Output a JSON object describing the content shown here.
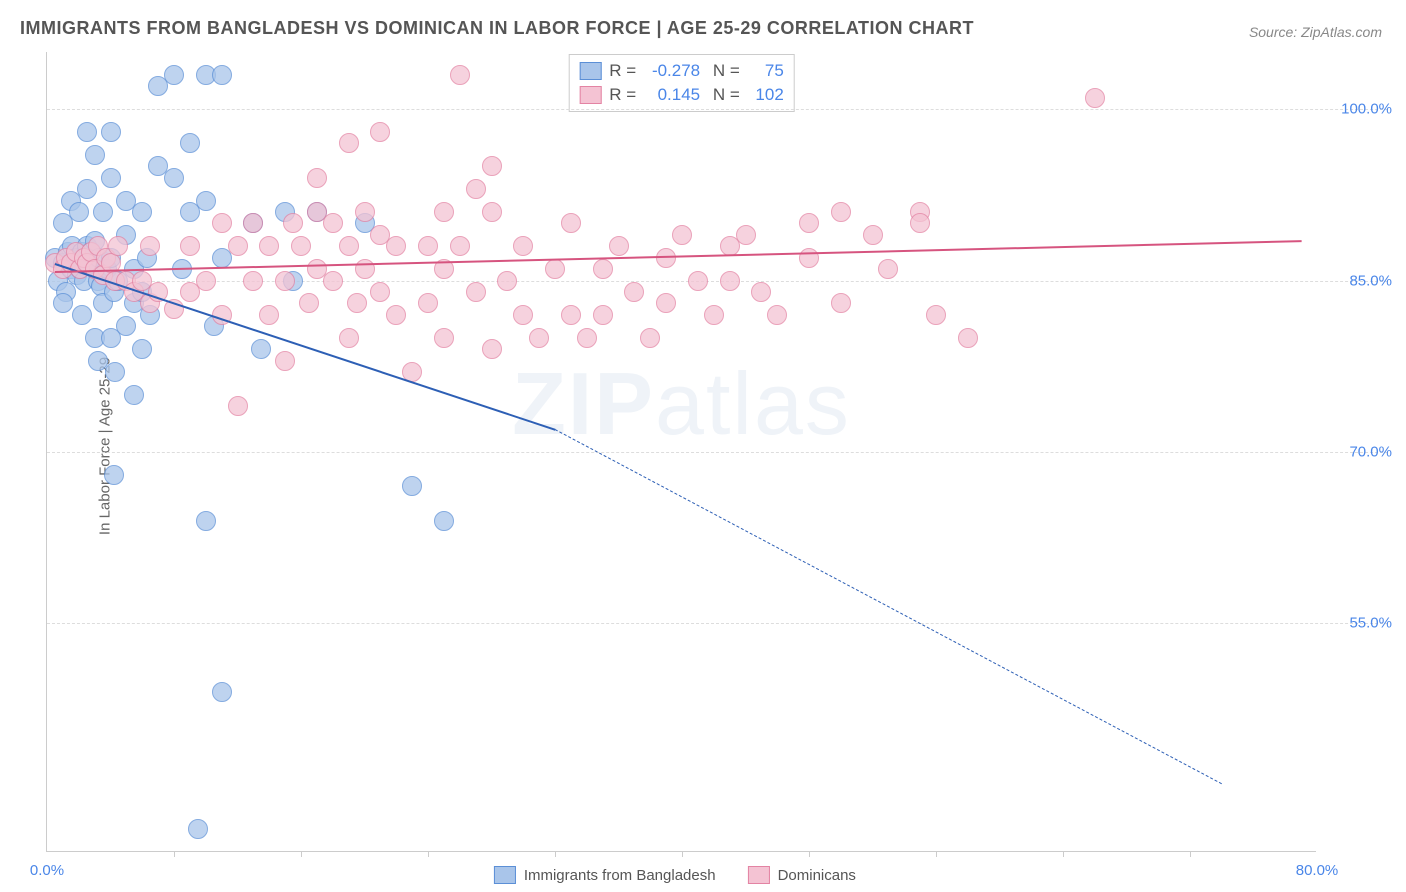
{
  "title": "IMMIGRANTS FROM BANGLADESH VS DOMINICAN IN LABOR FORCE | AGE 25-29 CORRELATION CHART",
  "source": "Source: ZipAtlas.com",
  "watermark_bold": "ZIP",
  "watermark_light": "atlas",
  "chart": {
    "type": "scatter",
    "background_color": "#ffffff",
    "grid_color": "#dddddd",
    "axis_color": "#cccccc",
    "y_axis_title": "In Labor Force | Age 25-29",
    "y_axis_title_color": "#666666",
    "xlim": [
      0,
      80
    ],
    "ylim": [
      35,
      105
    ],
    "y_ticks": [
      {
        "value": 55,
        "label": "55.0%"
      },
      {
        "value": 70,
        "label": "70.0%"
      },
      {
        "value": 85,
        "label": "85.0%"
      },
      {
        "value": 100,
        "label": "100.0%"
      }
    ],
    "x_ticks": [
      {
        "value": 0,
        "label": "0.0%"
      },
      {
        "value": 80,
        "label": "80.0%"
      }
    ],
    "x_tick_marks": [
      8,
      16,
      24,
      32,
      40,
      48,
      56,
      64,
      72
    ],
    "tick_label_color": "#4a86e8",
    "point_radius": 10,
    "point_fill_opacity": 0.28,
    "point_stroke_width": 1.8,
    "series": [
      {
        "name": "Immigrants from Bangladesh",
        "color_stroke": "#5b8fd6",
        "color_fill": "#a9c5ea",
        "R": "-0.278",
        "N": "75",
        "trend": {
          "x1": 0.5,
          "y1": 86.5,
          "x2_solid": 32,
          "y2_solid": 72,
          "x2": 74,
          "y2": 41,
          "stroke": "#2d5fb5",
          "width": 2.8,
          "dash_after": 32
        },
        "points": [
          {
            "x": 0.5,
            "y": 87
          },
          {
            "x": 0.7,
            "y": 85
          },
          {
            "x": 1,
            "y": 86.5
          },
          {
            "x": 1.2,
            "y": 84
          },
          {
            "x": 1.3,
            "y": 87.5
          },
          {
            "x": 1.5,
            "y": 86
          },
          {
            "x": 1.6,
            "y": 88
          },
          {
            "x": 1.8,
            "y": 87
          },
          {
            "x": 1.9,
            "y": 85.5
          },
          {
            "x": 2.1,
            "y": 86
          },
          {
            "x": 2.2,
            "y": 87.5
          },
          {
            "x": 2.3,
            "y": 85
          },
          {
            "x": 2.5,
            "y": 88
          },
          {
            "x": 2.6,
            "y": 86.5
          },
          {
            "x": 2.8,
            "y": 87.5
          },
          {
            "x": 3,
            "y": 88.5
          },
          {
            "x": 3,
            "y": 86
          },
          {
            "x": 3.2,
            "y": 85
          },
          {
            "x": 3.3,
            "y": 87
          },
          {
            "x": 3.4,
            "y": 84.5
          },
          {
            "x": 3.5,
            "y": 83
          },
          {
            "x": 3.8,
            "y": 86
          },
          {
            "x": 4,
            "y": 87
          },
          {
            "x": 4.2,
            "y": 84
          },
          {
            "x": 4.5,
            "y": 85
          },
          {
            "x": 1,
            "y": 90
          },
          {
            "x": 1.5,
            "y": 92
          },
          {
            "x": 2,
            "y": 91
          },
          {
            "x": 2.5,
            "y": 93
          },
          {
            "x": 3,
            "y": 96
          },
          {
            "x": 3.5,
            "y": 91
          },
          {
            "x": 4,
            "y": 94
          },
          {
            "x": 4,
            "y": 98
          },
          {
            "x": 5,
            "y": 92
          },
          {
            "x": 5,
            "y": 89
          },
          {
            "x": 5.5,
            "y": 86
          },
          {
            "x": 5.5,
            "y": 83
          },
          {
            "x": 6,
            "y": 84
          },
          {
            "x": 6,
            "y": 79
          },
          {
            "x": 6.5,
            "y": 82
          },
          {
            "x": 6.3,
            "y": 87
          },
          {
            "x": 6,
            "y": 91
          },
          {
            "x": 7,
            "y": 95
          },
          {
            "x": 7,
            "y": 102
          },
          {
            "x": 8,
            "y": 94
          },
          {
            "x": 8.5,
            "y": 86
          },
          {
            "x": 8,
            "y": 103
          },
          {
            "x": 9,
            "y": 97
          },
          {
            "x": 9,
            "y": 91
          },
          {
            "x": 10,
            "y": 103
          },
          {
            "x": 10,
            "y": 92
          },
          {
            "x": 10.5,
            "y": 81
          },
          {
            "x": 11,
            "y": 103
          },
          {
            "x": 11,
            "y": 87
          },
          {
            "x": 13,
            "y": 90
          },
          {
            "x": 13.5,
            "y": 79
          },
          {
            "x": 15,
            "y": 91
          },
          {
            "x": 15.5,
            "y": 85
          },
          {
            "x": 17,
            "y": 91
          },
          {
            "x": 20,
            "y": 90
          },
          {
            "x": 1,
            "y": 83
          },
          {
            "x": 2.2,
            "y": 82
          },
          {
            "x": 3,
            "y": 80
          },
          {
            "x": 3.2,
            "y": 78
          },
          {
            "x": 4,
            "y": 80
          },
          {
            "x": 4.3,
            "y": 77
          },
          {
            "x": 4.2,
            "y": 68
          },
          {
            "x": 5.5,
            "y": 75
          },
          {
            "x": 2.5,
            "y": 98
          },
          {
            "x": 5,
            "y": 81
          },
          {
            "x": 11,
            "y": 49
          },
          {
            "x": 9.5,
            "y": 37
          },
          {
            "x": 10,
            "y": 64
          },
          {
            "x": 23,
            "y": 67
          },
          {
            "x": 25,
            "y": 64
          }
        ]
      },
      {
        "name": "Dominicans",
        "color_stroke": "#e383a3",
        "color_fill": "#f4c3d3",
        "R": "0.145",
        "N": "102",
        "trend": {
          "x1": 0.5,
          "y1": 85.8,
          "x2": 79,
          "y2": 88.5,
          "stroke": "#d6547f",
          "width": 2.8
        },
        "points": [
          {
            "x": 0.5,
            "y": 86.5
          },
          {
            "x": 1,
            "y": 86
          },
          {
            "x": 1.2,
            "y": 87
          },
          {
            "x": 1.5,
            "y": 86.5
          },
          {
            "x": 1.8,
            "y": 87.5
          },
          {
            "x": 2.1,
            "y": 86
          },
          {
            "x": 2.3,
            "y": 87
          },
          {
            "x": 2.5,
            "y": 86.5
          },
          {
            "x": 2.8,
            "y": 87.5
          },
          {
            "x": 3,
            "y": 86
          },
          {
            "x": 3.2,
            "y": 88
          },
          {
            "x": 3.5,
            "y": 85.5
          },
          {
            "x": 3.7,
            "y": 87
          },
          {
            "x": 4,
            "y": 86.5
          },
          {
            "x": 4.3,
            "y": 85
          },
          {
            "x": 4.5,
            "y": 88
          },
          {
            "x": 5,
            "y": 85
          },
          {
            "x": 5.5,
            "y": 84
          },
          {
            "x": 6,
            "y": 85
          },
          {
            "x": 6.5,
            "y": 83
          },
          {
            "x": 6.5,
            "y": 88
          },
          {
            "x": 7,
            "y": 84
          },
          {
            "x": 8,
            "y": 82.5
          },
          {
            "x": 9,
            "y": 84
          },
          {
            "x": 9,
            "y": 88
          },
          {
            "x": 10,
            "y": 85
          },
          {
            "x": 11,
            "y": 90
          },
          {
            "x": 11,
            "y": 82
          },
          {
            "x": 12,
            "y": 88
          },
          {
            "x": 13,
            "y": 85
          },
          {
            "x": 13,
            "y": 90
          },
          {
            "x": 14,
            "y": 82
          },
          {
            "x": 14,
            "y": 88
          },
          {
            "x": 15,
            "y": 85
          },
          {
            "x": 15.5,
            "y": 90
          },
          {
            "x": 16,
            "y": 88
          },
          {
            "x": 16.5,
            "y": 83
          },
          {
            "x": 17,
            "y": 86
          },
          {
            "x": 17,
            "y": 91
          },
          {
            "x": 18,
            "y": 85
          },
          {
            "x": 18,
            "y": 90
          },
          {
            "x": 19,
            "y": 88
          },
          {
            "x": 19,
            "y": 80
          },
          {
            "x": 19.5,
            "y": 83
          },
          {
            "x": 20,
            "y": 86
          },
          {
            "x": 20,
            "y": 91
          },
          {
            "x": 21,
            "y": 84
          },
          {
            "x": 21,
            "y": 89
          },
          {
            "x": 22,
            "y": 82
          },
          {
            "x": 22,
            "y": 88
          },
          {
            "x": 24,
            "y": 88
          },
          {
            "x": 24,
            "y": 83
          },
          {
            "x": 25,
            "y": 91
          },
          {
            "x": 25,
            "y": 86
          },
          {
            "x": 25,
            "y": 80
          },
          {
            "x": 26,
            "y": 88
          },
          {
            "x": 27,
            "y": 93
          },
          {
            "x": 27,
            "y": 84
          },
          {
            "x": 28,
            "y": 79
          },
          {
            "x": 28,
            "y": 91
          },
          {
            "x": 29,
            "y": 85
          },
          {
            "x": 30,
            "y": 82
          },
          {
            "x": 30,
            "y": 88
          },
          {
            "x": 31,
            "y": 80
          },
          {
            "x": 32,
            "y": 86
          },
          {
            "x": 33,
            "y": 82
          },
          {
            "x": 33,
            "y": 90
          },
          {
            "x": 34,
            "y": 80
          },
          {
            "x": 35,
            "y": 86
          },
          {
            "x": 35,
            "y": 82
          },
          {
            "x": 36,
            "y": 88
          },
          {
            "x": 37,
            "y": 84
          },
          {
            "x": 38,
            "y": 80
          },
          {
            "x": 39,
            "y": 87
          },
          {
            "x": 39,
            "y": 83
          },
          {
            "x": 40,
            "y": 89
          },
          {
            "x": 41,
            "y": 85
          },
          {
            "x": 42,
            "y": 82
          },
          {
            "x": 43,
            "y": 88
          },
          {
            "x": 43,
            "y": 85
          },
          {
            "x": 44,
            "y": 89
          },
          {
            "x": 45,
            "y": 84
          },
          {
            "x": 46,
            "y": 82
          },
          {
            "x": 48,
            "y": 87
          },
          {
            "x": 48,
            "y": 90
          },
          {
            "x": 50,
            "y": 83
          },
          {
            "x": 52,
            "y": 89
          },
          {
            "x": 53,
            "y": 86
          },
          {
            "x": 55,
            "y": 91
          },
          {
            "x": 56,
            "y": 82
          },
          {
            "x": 58,
            "y": 80
          },
          {
            "x": 66,
            "y": 101
          },
          {
            "x": 12,
            "y": 74
          },
          {
            "x": 15,
            "y": 78
          },
          {
            "x": 23,
            "y": 77
          },
          {
            "x": 17,
            "y": 94
          },
          {
            "x": 21,
            "y": 98
          },
          {
            "x": 26,
            "y": 103
          },
          {
            "x": 28,
            "y": 95
          },
          {
            "x": 55,
            "y": 90
          },
          {
            "x": 50,
            "y": 91
          },
          {
            "x": 19,
            "y": 97
          }
        ]
      }
    ],
    "legend_bottom": [
      {
        "label": "Immigrants from Bangladesh",
        "stroke": "#5b8fd6",
        "fill": "#a9c5ea"
      },
      {
        "label": "Dominicans",
        "stroke": "#e383a3",
        "fill": "#f4c3d3"
      }
    ]
  }
}
